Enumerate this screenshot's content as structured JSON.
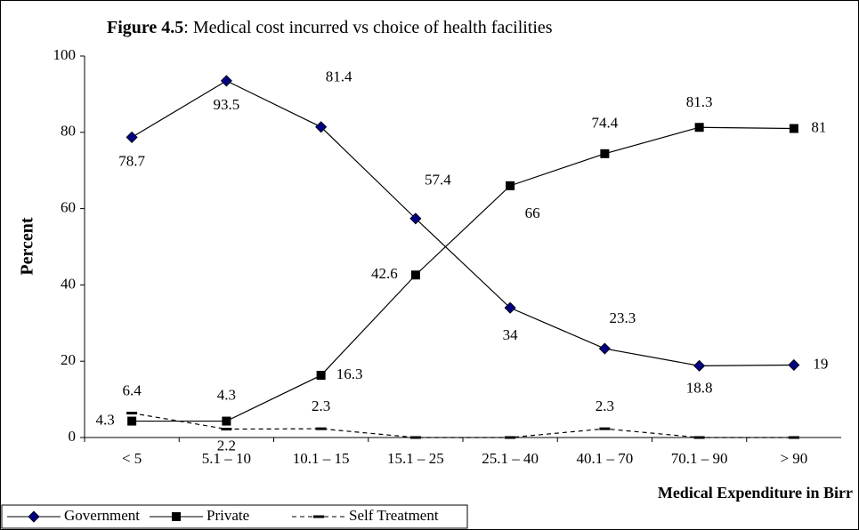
{
  "chart_data": {
    "type": "line",
    "title": {
      "label": "Figure 4.5",
      "text": ": Medical cost incurred vs choice of health facilities"
    },
    "x_label": "Medical Expenditure in Birr",
    "y_label": "Percent",
    "categories": [
      "< 5",
      "5.1 – 10",
      "10.1 – 15",
      "15.1 – 25",
      "25.1 – 40",
      "40.1 – 70",
      "70.1 – 90",
      "> 90"
    ],
    "ylim": [
      0,
      100
    ],
    "yticks": [
      0,
      20,
      40,
      60,
      80,
      100
    ],
    "series": [
      {
        "name": "Government",
        "color": "#000080",
        "marker": "diamond",
        "dash": false,
        "values": [
          78.7,
          93.5,
          81.4,
          57.4,
          34,
          23.3,
          18.8,
          19
        ]
      },
      {
        "name": "Private",
        "color": "#000000",
        "marker": "square",
        "dash": false,
        "values": [
          4.3,
          4.3,
          16.3,
          42.6,
          66,
          74.4,
          81.3,
          81
        ]
      },
      {
        "name": "Self Treatment",
        "color": "#000000",
        "marker": "dash",
        "dash": true,
        "values": [
          6.4,
          2.2,
          2.3,
          0,
          0,
          2.3,
          0,
          0
        ],
        "value_labels": [
          "6.4",
          "2.2",
          "2.3",
          null,
          null,
          "2.3",
          null,
          null
        ]
      }
    ]
  }
}
